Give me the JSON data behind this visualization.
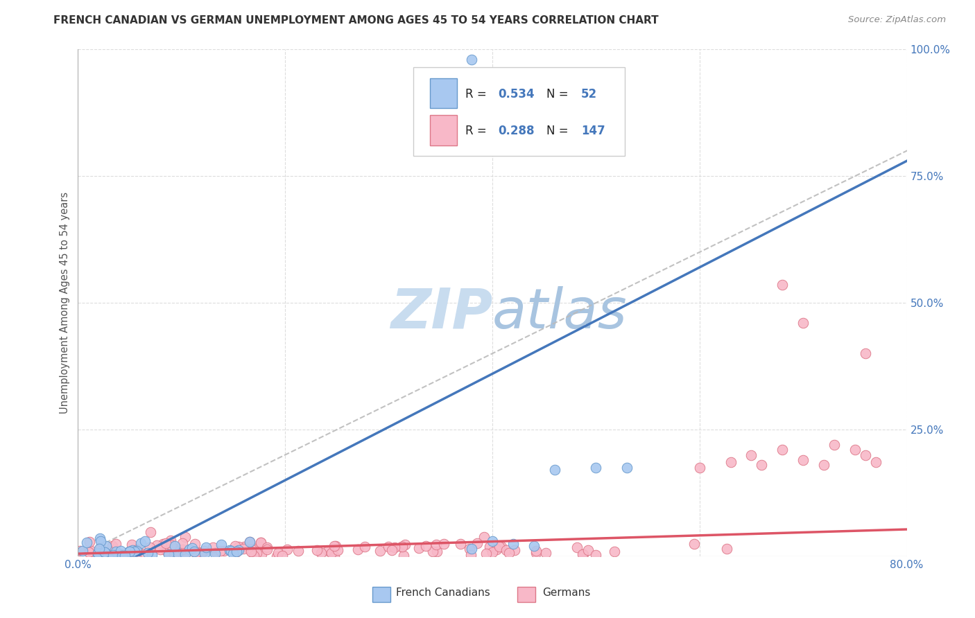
{
  "title": "FRENCH CANADIAN VS GERMAN UNEMPLOYMENT AMONG AGES 45 TO 54 YEARS CORRELATION CHART",
  "source": "Source: ZipAtlas.com",
  "ylabel": "Unemployment Among Ages 45 to 54 years",
  "xlim": [
    0.0,
    0.8
  ],
  "ylim": [
    0.0,
    1.0
  ],
  "blue_color": "#A8C8F0",
  "pink_color": "#F8B8C8",
  "blue_edge_color": "#6699CC",
  "pink_edge_color": "#DD7788",
  "blue_line_color": "#4477BB",
  "pink_line_color": "#DD5566",
  "gray_dash_color": "#BBBBBB",
  "watermark_color": "#C8DCEF",
  "legend_R_blue": "0.534",
  "legend_N_blue": "52",
  "legend_R_pink": "0.288",
  "legend_N_pink": "147",
  "N_blue": 52,
  "N_pink": 147,
  "blue_intercept": -0.06,
  "blue_slope": 1.05,
  "pink_intercept": 0.005,
  "pink_slope": 0.06
}
